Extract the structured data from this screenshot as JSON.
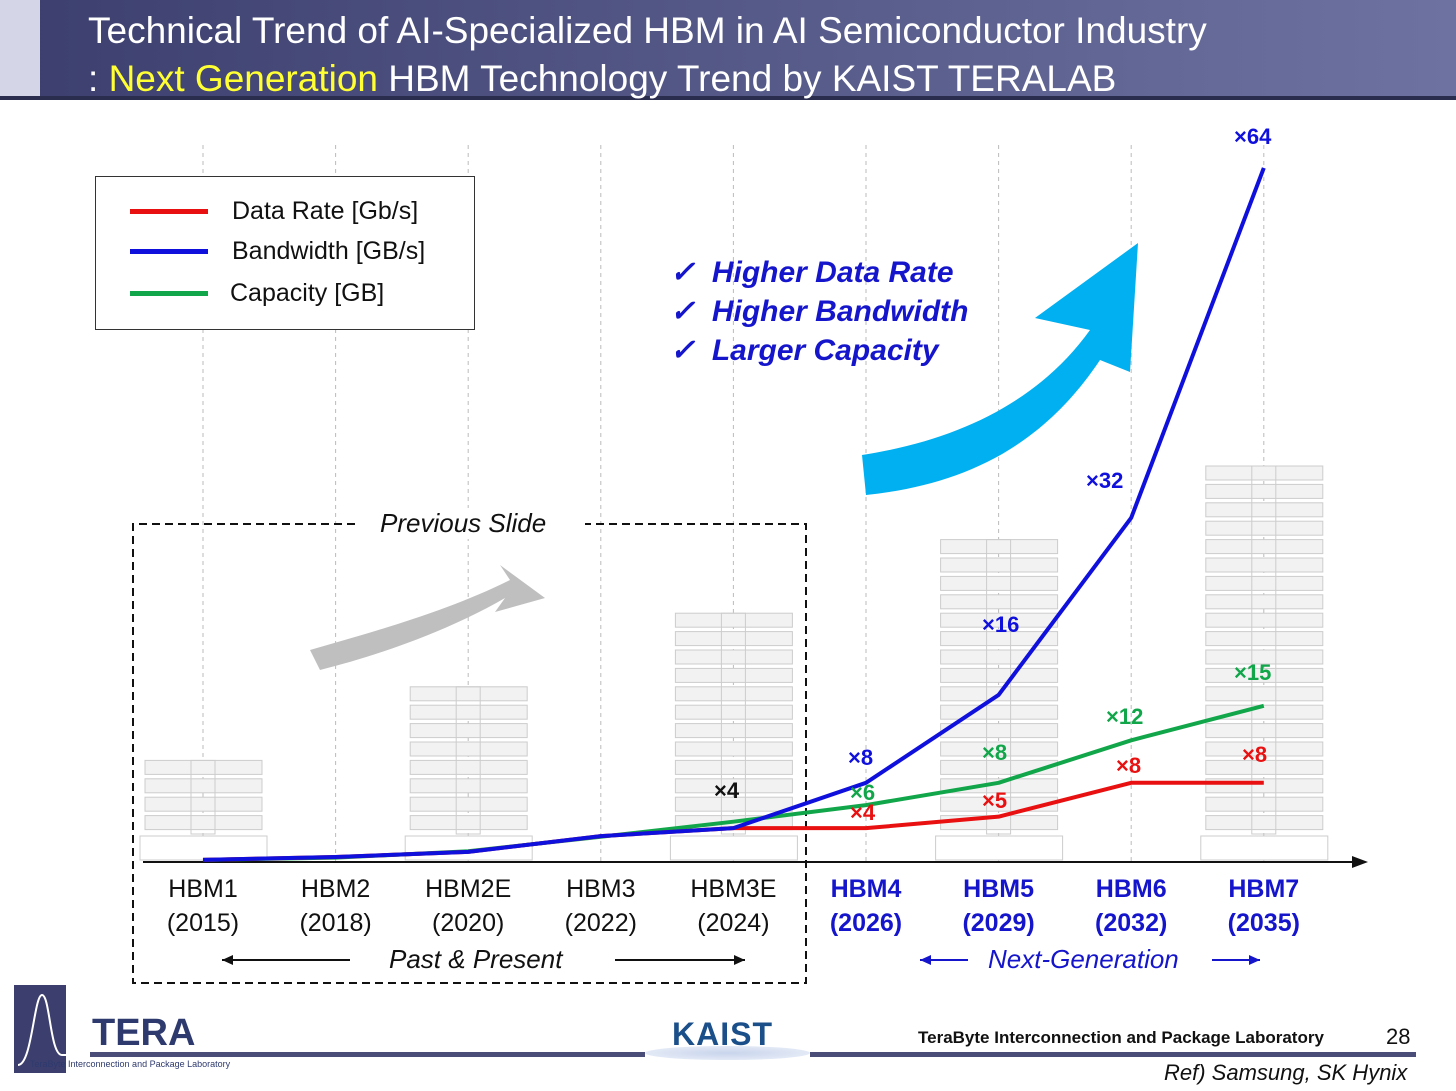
{
  "header": {
    "title_line1": "Technical Trend of AI-Specialized HBM in AI Semiconductor Industry",
    "title_line2_prefix": ": ",
    "title_line2_highlight": "Next Generation",
    "title_line2_rest": " HBM Technology Trend by KAIST TERALAB"
  },
  "chart_data": {
    "type": "line",
    "categories": [
      "HBM1 (2015)",
      "HBM2 (2018)",
      "HBM2E (2020)",
      "HBM3 (2022)",
      "HBM3E (2024)",
      "HBM4 (2026)",
      "HBM5 (2029)",
      "HBM6 (2032)",
      "HBM7 (2035)"
    ],
    "category_labels": [
      [
        "HBM1",
        "(2015)"
      ],
      [
        "HBM2",
        "(2018)"
      ],
      [
        "HBM2E",
        "(2020)"
      ],
      [
        "HBM3",
        "(2022)"
      ],
      [
        "HBM3E",
        "(2024)"
      ],
      [
        "HBM4",
        "(2026)"
      ],
      [
        "HBM5",
        "(2029)"
      ],
      [
        "HBM6",
        "(2032)"
      ],
      [
        "HBM7",
        "(2035)"
      ]
    ],
    "next_generation_from_index": 5,
    "ylim": [
      0,
      100
    ],
    "y_axis_labeled": false,
    "series": [
      {
        "name": "Data Rate [Gb/s]",
        "color": "#e81010",
        "values": [
          0.3,
          0.7,
          1.4,
          3.6,
          4.7,
          4.7,
          6.3,
          11,
          11
        ]
      },
      {
        "name": "Bandwidth [GB/s]",
        "color": "#1010dd",
        "values": [
          0.3,
          0.7,
          1.4,
          3.6,
          4.7,
          11,
          23.2,
          47.8,
          96.4
        ]
      },
      {
        "name": "Capacity [GB]",
        "color": "#12a64a",
        "values": [
          0.3,
          0.6,
          1.5,
          3.5,
          5.6,
          7.9,
          11,
          16.9,
          21.7
        ]
      }
    ],
    "annotations": [
      {
        "text": "×4",
        "color": "#111111",
        "category": "HBM3E (2024)"
      },
      {
        "text": "×8",
        "color": "#1010dd",
        "category": "HBM4 (2026)"
      },
      {
        "text": "×6",
        "color": "#12a64a",
        "category": "HBM4 (2026)"
      },
      {
        "text": "×4",
        "color": "#e81010",
        "category": "HBM4 (2026)"
      },
      {
        "text": "×16",
        "color": "#1010dd",
        "category": "HBM5 (2029)"
      },
      {
        "text": "×8",
        "color": "#12a64a",
        "category": "HBM5 (2029)"
      },
      {
        "text": "×5",
        "color": "#e81010",
        "category": "HBM5 (2029)"
      },
      {
        "text": "×32",
        "color": "#1010dd",
        "category": "HBM6 (2032)"
      },
      {
        "text": "×12",
        "color": "#12a64a",
        "category": "HBM6 (2032)"
      },
      {
        "text": "×8",
        "color": "#e81010",
        "category": "HBM6 (2032)"
      },
      {
        "text": "×64",
        "color": "#1010dd",
        "category": "HBM7 (2035)"
      },
      {
        "text": "×15",
        "color": "#12a64a",
        "category": "HBM7 (2035)"
      },
      {
        "text": "×8",
        "color": "#e81010",
        "category": "HBM7 (2035)"
      }
    ],
    "stack_dies": [
      {
        "category": "HBM1 (2015)",
        "dies": 4
      },
      {
        "category": "HBM2E (2020)",
        "dies": 8
      },
      {
        "category": "HBM3E (2024)",
        "dies": 12
      },
      {
        "category": "HBM5 (2029)",
        "dies": 16
      },
      {
        "category": "HBM7 (2035)",
        "dies": 20
      }
    ],
    "legend_placement": "top-left",
    "grid": "vertical dashed"
  },
  "callouts": {
    "checks": [
      "Higher Data Rate",
      "Higher Bandwidth",
      "Larger Capacity"
    ],
    "check_icon": "✓",
    "previous_slide": "Previous Slide",
    "past_present": "Past & Present",
    "next_generation": "Next-Generation"
  },
  "footer": {
    "lab_logo": "TERA",
    "lab_logo_sub": "TeraByte Interconnection and Package Laboratory",
    "kaist_logo": "KAIST",
    "lab_name": "TeraByte Interconnection and Package Laboratory",
    "page_number": "28",
    "reference": "Ref) Samsung, SK Hynix"
  }
}
